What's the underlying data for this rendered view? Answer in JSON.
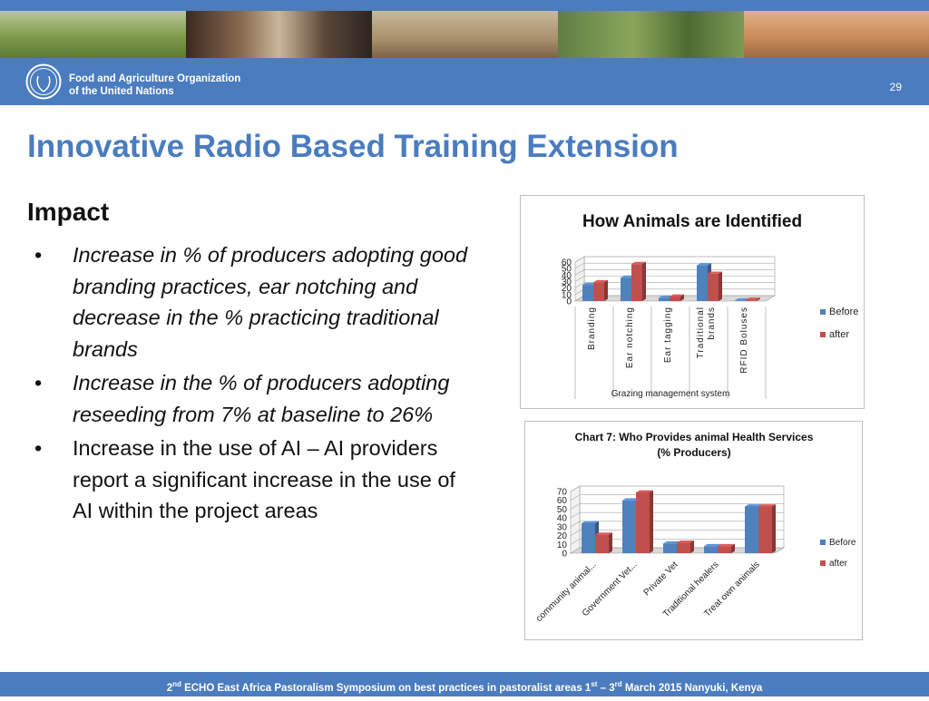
{
  "header": {
    "org_line1": "Food and Agriculture Organization",
    "org_line2": "of the United Nations",
    "slide_number": "29",
    "logo_text": "FAO"
  },
  "slide": {
    "title": "Innovative Radio Based Training Extension",
    "subtitle": "Impact",
    "bullets": [
      {
        "text": "Increase in % of producers adopting good branding practices, ear notching and decrease in the % practicing traditional brands",
        "italic": true
      },
      {
        "text": "Increase in the % of producers adopting reseeding from 7% at baseline to 26%",
        "italic": true
      },
      {
        "text": "Increase in the use of AI – AI providers report a significant increase in the use of AI within the project areas",
        "italic": false
      }
    ]
  },
  "chart_data": [
    {
      "type": "bar",
      "title": "How Animals are  Identified",
      "xlabel": "Grazing management system",
      "ylabel": "",
      "ylim": [
        0,
        60
      ],
      "yticks": [
        0,
        10,
        20,
        30,
        40,
        50,
        60
      ],
      "categories": [
        "Branding",
        "Ear notching",
        "Ear tagging",
        "Traditional brands",
        "RFID Boluses"
      ],
      "series": [
        {
          "name": "Before",
          "values": [
            25,
            36,
            5,
            55,
            1
          ],
          "color": "#4f81bd"
        },
        {
          "name": "after",
          "values": [
            29,
            57,
            7,
            42,
            2
          ],
          "color": "#c0504d"
        }
      ],
      "legend": "right",
      "grid": true
    },
    {
      "type": "bar",
      "title": "Chart 7: Who Provides animal Health Services (% Producers)",
      "xlabel": "",
      "ylabel": "",
      "ylim": [
        0,
        70
      ],
      "yticks": [
        0,
        10,
        20,
        30,
        40,
        50,
        60,
        70
      ],
      "categories": [
        "community animal...",
        "Government Vet...",
        "Private Vet",
        "Traditional healers",
        "Treat own animals"
      ],
      "series": [
        {
          "name": "Before",
          "values": [
            34,
            60,
            11,
            8,
            53
          ],
          "color": "#4f81bd"
        },
        {
          "name": "after",
          "values": [
            21,
            69,
            12,
            8,
            53
          ],
          "color": "#c0504d"
        }
      ],
      "legend": "right",
      "grid": true
    }
  ],
  "footer": {
    "part1": "2",
    "sup1": "nd",
    "part2": " ECHO East Africa Pastoralism Symposium on best practices in pastoralist areas  1",
    "sup2": "st",
    "part3": " – 3",
    "sup3": "rd",
    "part4": " March 2015 Nanyuki, Kenya"
  }
}
